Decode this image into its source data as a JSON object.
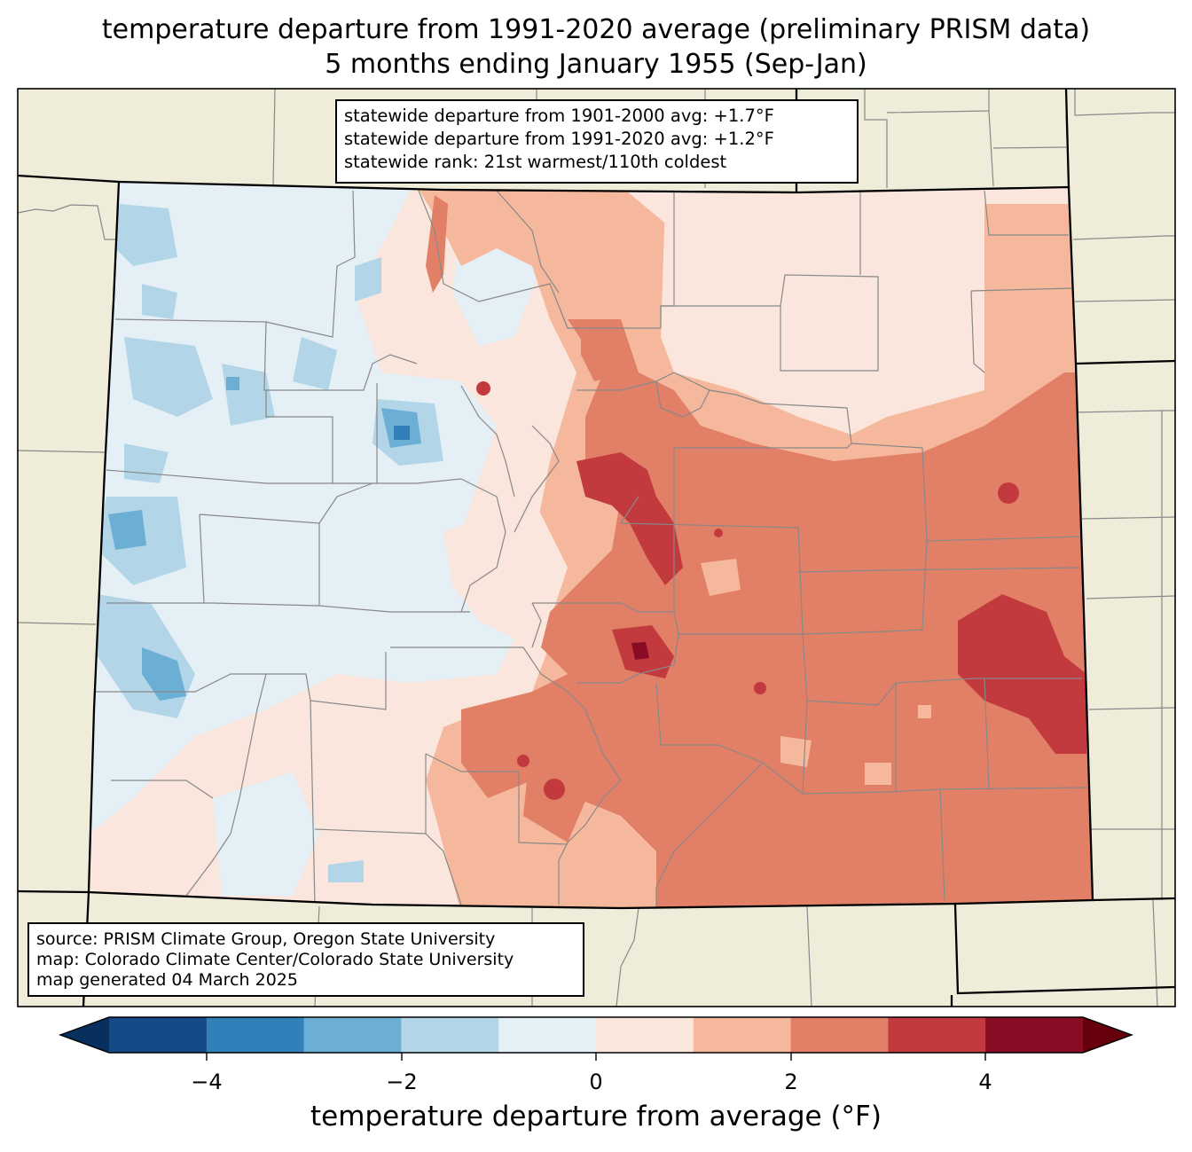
{
  "title": {
    "line1": "temperature departure from 1991-2020 average (preliminary PRISM data)",
    "line2": "5 months ending January 1955 (Sep-Jan)"
  },
  "stats": {
    "line1": "statewide departure from 1901-2000 avg: +1.7°F",
    "line2": "statewide departure from 1991-2020 avg: +1.2°F",
    "line3": "statewide rank: 21st warmest/110th coldest"
  },
  "source": {
    "line1": "source: PRISM Climate Group, Oregon State University",
    "line2": "map: Colorado Climate Center/Colorado State University",
    "line3": "map generated 04 March 2025"
  },
  "colorbar": {
    "label": "temperature departure from average (°F)",
    "ticks": [
      "−4",
      "−2",
      "0",
      "2",
      "4"
    ],
    "bins": [
      {
        "range": [
          -5,
          -4
        ],
        "color": "#144a87"
      },
      {
        "range": [
          -4,
          -3
        ],
        "color": "#3180ba"
      },
      {
        "range": [
          -3,
          -2
        ],
        "color": "#6cafd4"
      },
      {
        "range": [
          -2,
          -1
        ],
        "color": "#b2d5e8"
      },
      {
        "range": [
          -1,
          0
        ],
        "color": "#e5eff6"
      },
      {
        "range": [
          0,
          1
        ],
        "color": "#fae6dc"
      },
      {
        "range": [
          1,
          2
        ],
        "color": "#f6b89c"
      },
      {
        "range": [
          2,
          3
        ],
        "color": "#e27f67"
      },
      {
        "range": [
          3,
          4
        ],
        "color": "#c23a3e"
      },
      {
        "range": [
          4,
          5
        ],
        "color": "#870c24"
      }
    ],
    "under_color": "#08305e",
    "over_color": "#67000d"
  },
  "colors": {
    "land": "#efedda",
    "state_border": "#000000",
    "county_border": "#888888"
  }
}
